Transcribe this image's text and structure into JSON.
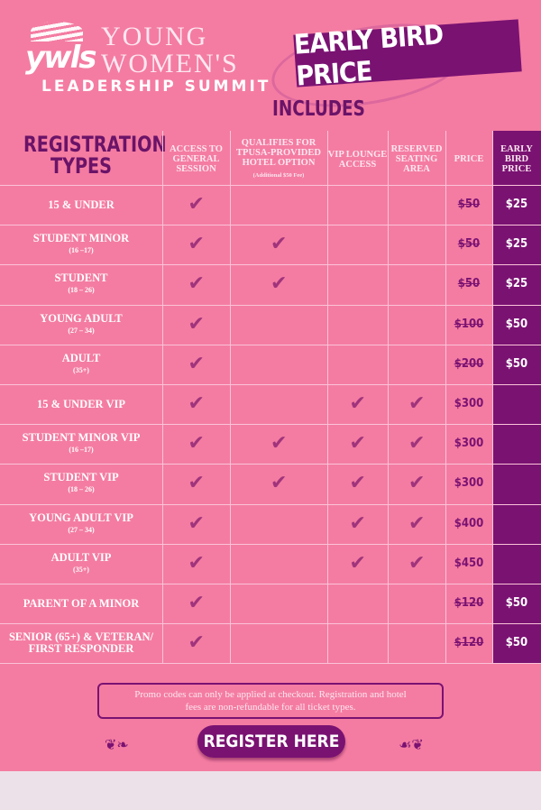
{
  "brand": {
    "logo_mark": "ywls",
    "title_line1": "YOUNG",
    "title_line2": "WOMEN'S",
    "title_line3": "LEADERSHIP SUMMIT"
  },
  "banner": "EARLY BIRD PRICE",
  "includes_label": "INCLUDES",
  "colors": {
    "background": "#f47ca2",
    "accent": "#7a1272",
    "check": "#a0347c"
  },
  "headers": {
    "types_line1": "REGISTRATION",
    "types_line2": "TYPES",
    "general": "ACCESS TO GENERAL SESSION",
    "hotel": "QUALIFIES FOR TPUSA-PROVIDED HOTEL OPTION",
    "hotel_note": "(Additional $50 Fee)",
    "vip": "VIP LOUNGE ACCESS",
    "seating": "RESERVED SEATING AREA",
    "price": "PRICE",
    "early": "EARLY BIRD PRICE"
  },
  "check_icon": "checkmark-icon",
  "rows": [
    {
      "name": "15 & UNDER",
      "sub": "",
      "general": true,
      "hotel": false,
      "vip": false,
      "seating": false,
      "price": "$50",
      "struck": true,
      "early": "$25"
    },
    {
      "name": "STUDENT MINOR",
      "sub": "(16 –17)",
      "general": true,
      "hotel": true,
      "vip": false,
      "seating": false,
      "price": "$50",
      "struck": true,
      "early": "$25"
    },
    {
      "name": "STUDENT",
      "sub": "(18 – 26)",
      "general": true,
      "hotel": true,
      "vip": false,
      "seating": false,
      "price": "$50",
      "struck": true,
      "early": "$25"
    },
    {
      "name": "YOUNG ADULT",
      "sub": "(27 – 34)",
      "general": true,
      "hotel": false,
      "vip": false,
      "seating": false,
      "price": "$100",
      "struck": true,
      "early": "$50"
    },
    {
      "name": "ADULT",
      "sub": "(35+)",
      "general": true,
      "hotel": false,
      "vip": false,
      "seating": false,
      "price": "$200",
      "struck": true,
      "early": "$50"
    },
    {
      "name": "15 & UNDER VIP",
      "sub": "",
      "general": true,
      "hotel": false,
      "vip": true,
      "seating": true,
      "price": "$300",
      "struck": false,
      "early": ""
    },
    {
      "name": "STUDENT MINOR VIP",
      "sub": "(16 –17)",
      "general": true,
      "hotel": true,
      "vip": true,
      "seating": true,
      "price": "$300",
      "struck": false,
      "early": ""
    },
    {
      "name": "STUDENT VIP",
      "sub": "(18 – 26)",
      "general": true,
      "hotel": true,
      "vip": true,
      "seating": true,
      "price": "$300",
      "struck": false,
      "early": ""
    },
    {
      "name": "YOUNG ADULT VIP",
      "sub": "(27 – 34)",
      "general": true,
      "hotel": false,
      "vip": true,
      "seating": true,
      "price": "$400",
      "struck": false,
      "early": ""
    },
    {
      "name": "ADULT VIP",
      "sub": "(35+)",
      "general": true,
      "hotel": false,
      "vip": true,
      "seating": true,
      "price": "$450",
      "struck": false,
      "early": ""
    },
    {
      "name": "PARENT OF A MINOR",
      "sub": "",
      "general": true,
      "hotel": false,
      "vip": false,
      "seating": false,
      "price": "$120",
      "struck": true,
      "early": "$50"
    },
    {
      "name": "SENIOR (65+) & VETERAN/ FIRST RESPONDER",
      "sub": "",
      "general": true,
      "hotel": false,
      "vip": false,
      "seating": false,
      "price": "$120",
      "struck": true,
      "early": "$50"
    }
  ],
  "note": "Promo codes can only be applied at checkout. Registration and hotel fees are non-refundable for all ticket types.",
  "register_label": "REGISTER HERE"
}
